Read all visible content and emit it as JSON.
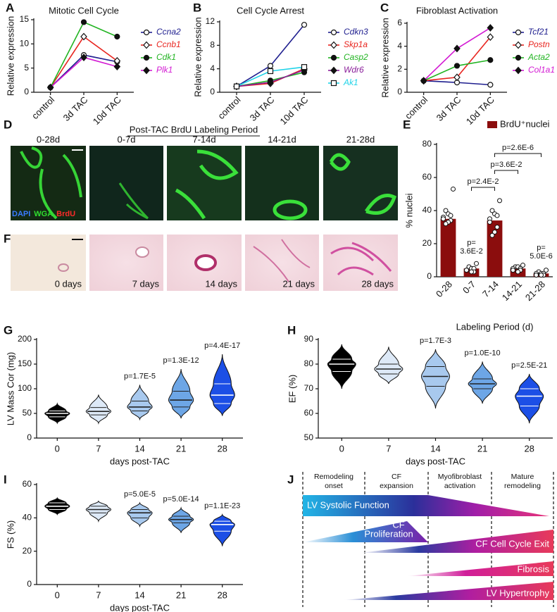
{
  "panel_labels": [
    "A",
    "B",
    "C",
    "D",
    "E",
    "F",
    "G",
    "H",
    "I",
    "J"
  ],
  "chart_data": [
    {
      "type": "line",
      "title": "Mitotic Cell Cycle",
      "y_label": "Relative expression",
      "categories": [
        "control",
        "3d TAC",
        "10d TAC"
      ],
      "ylim": [
        0,
        15
      ],
      "yticks": [
        0,
        5,
        10,
        15
      ],
      "series": [
        {
          "name": "Ccna2",
          "color": "#1f1f8f",
          "marker": "circle",
          "filled": false,
          "values": [
            1,
            7.7,
            6.3
          ]
        },
        {
          "name": "Ccnb1",
          "color": "#e8251f",
          "marker": "diamond",
          "filled": false,
          "values": [
            1,
            11.5,
            6.5
          ]
        },
        {
          "name": "Cdk1",
          "color": "#22b422",
          "marker": "circle",
          "filled": true,
          "values": [
            1,
            14.5,
            11.5
          ]
        },
        {
          "name": "Plk1",
          "color": "#d31bd3",
          "marker": "diamond",
          "filled": true,
          "values": [
            1,
            7.2,
            5.3
          ]
        }
      ]
    },
    {
      "type": "line",
      "title": "Cell Cycle Arrest",
      "y_label": "Relative expression",
      "categories": [
        "control",
        "3d TAC",
        "10d TAC"
      ],
      "ylim": [
        0,
        12
      ],
      "yticks": [
        0,
        4,
        8,
        12
      ],
      "series": [
        {
          "name": "Cdkn3",
          "color": "#1f1f8f",
          "marker": "circle",
          "filled": false,
          "values": [
            1,
            4.5,
            11.5
          ]
        },
        {
          "name": "Skp1a",
          "color": "#e8251f",
          "marker": "diamond",
          "filled": false,
          "values": [
            1,
            1.5,
            4.0
          ]
        },
        {
          "name": "Casp2",
          "color": "#22b422",
          "marker": "circle",
          "filled": true,
          "values": [
            1,
            2.0,
            3.4
          ]
        },
        {
          "name": "Wdr6",
          "color": "#8a1f9a",
          "marker": "diamond",
          "filled": true,
          "values": [
            1,
            1.7,
            3.8
          ]
        },
        {
          "name": "Ak1",
          "color": "#1fd3e8",
          "marker": "square",
          "filled": false,
          "values": [
            1,
            3.6,
            4.3
          ]
        }
      ]
    },
    {
      "type": "line",
      "title": "Fibroblast Activation",
      "y_label": "Relative expression",
      "categories": [
        "control",
        "3d TAC",
        "10d TAC"
      ],
      "ylim": [
        0,
        6
      ],
      "yticks": [
        0,
        2,
        4,
        6
      ],
      "series": [
        {
          "name": "Tcf21",
          "color": "#1f1f8f",
          "marker": "circle",
          "filled": false,
          "values": [
            1,
            0.85,
            0.65
          ]
        },
        {
          "name": "Postn",
          "color": "#e8251f",
          "marker": "diamond",
          "filled": false,
          "values": [
            1,
            1.3,
            4.8
          ]
        },
        {
          "name": "Acta2",
          "color": "#22b422",
          "marker": "circle",
          "filled": true,
          "values": [
            1,
            2.3,
            2.8
          ]
        },
        {
          "name": "Col1a1",
          "color": "#d31bd3",
          "marker": "diamond",
          "filled": true,
          "values": [
            1,
            3.8,
            5.6
          ]
        }
      ]
    },
    {
      "type": "bar",
      "y_label": "% nuclei",
      "x_label": "Labeling Period (d)",
      "categories": [
        "0-28",
        "0-7",
        "7-14",
        "14-21",
        "21-28"
      ],
      "ylim": [
        0,
        80
      ],
      "yticks": [
        0,
        20,
        40,
        60,
        80
      ],
      "series": [
        {
          "name": "BrdU⁺nuclei",
          "color": "#8b0d0d",
          "values": [
            35,
            5,
            34,
            5,
            2
          ]
        }
      ],
      "points": [
        [
          53,
          40,
          38,
          37,
          36,
          35,
          34,
          33,
          32
        ],
        [
          8,
          6,
          5,
          5,
          4,
          4,
          3,
          3
        ],
        [
          46,
          40,
          38,
          37,
          35,
          33,
          30,
          27,
          25
        ],
        [
          7,
          6,
          6,
          5,
          5,
          4,
          4,
          3
        ],
        [
          4,
          3,
          2,
          2,
          2,
          1,
          1,
          1
        ]
      ],
      "brackets": [
        {
          "from": 1,
          "to": 2,
          "label": "p=2.4E-2"
        },
        {
          "from": 2,
          "to": 3,
          "label": "p=3.6E-2"
        },
        {
          "from": 2,
          "to": 4,
          "label": "p=2.6E-6"
        }
      ],
      "bar_labels": [
        null,
        [
          "p=",
          "3.6E-2"
        ],
        null,
        null,
        [
          "p=",
          "5.0E-6"
        ]
      ]
    },
    {
      "type": "violin",
      "y_label": "LV Mass Cor (mg)",
      "x_label": "days post-TAC",
      "categories": [
        "0",
        "7",
        "14",
        "21",
        "28"
      ],
      "colors": [
        "#000000",
        "#dde9f7",
        "#a8c9ee",
        "#6da6e6",
        "#1c4fe6"
      ],
      "min": [
        30,
        30,
        38,
        40,
        45
      ],
      "q1": [
        43,
        47,
        55,
        63,
        70
      ],
      "median": [
        50,
        54,
        63,
        77,
        87
      ],
      "q3": [
        55,
        62,
        75,
        95,
        110
      ],
      "max": [
        70,
        88,
        108,
        140,
        170
      ],
      "ylim": [
        0,
        200
      ],
      "yticks": [
        0,
        50,
        100,
        150,
        200
      ],
      "annotations": [
        null,
        null,
        "p=1.7E-5",
        "p=1.3E-12",
        "p=4.4E-17"
      ]
    },
    {
      "type": "violin",
      "y_label": "EF (%)",
      "x_label": "days post-TAC",
      "categories": [
        "0",
        "7",
        "14",
        "21",
        "28"
      ],
      "colors": [
        "#000000",
        "#dde9f7",
        "#a8c9ee",
        "#6da6e6",
        "#1c4fe6"
      ],
      "min": [
        70,
        72,
        62,
        64,
        56
      ],
      "q1": [
        77,
        76,
        71,
        70,
        63
      ],
      "median": [
        80,
        78,
        75,
        72,
        67
      ],
      "q3": [
        82,
        80,
        79,
        74,
        70
      ],
      "max": [
        88,
        87,
        86,
        81,
        76
      ],
      "ylim": [
        50,
        90
      ],
      "yticks": [
        50,
        60,
        70,
        80,
        90
      ],
      "annotations": [
        null,
        null,
        "p=1.7E-3",
        "p=1.0E-10",
        "p=2.5E-21"
      ]
    },
    {
      "type": "violin",
      "y_label": "FS (%)",
      "x_label": "days post-TAC",
      "categories": [
        "0",
        "7",
        "14",
        "21",
        "28"
      ],
      "colors": [
        "#000000",
        "#dde9f7",
        "#a8c9ee",
        "#6da6e6",
        "#1c4fe6"
      ],
      "min": [
        42,
        38,
        35,
        31,
        23
      ],
      "q1": [
        45,
        43,
        40,
        37,
        32
      ],
      "median": [
        47,
        45,
        43,
        39,
        36
      ],
      "q3": [
        49,
        47,
        45,
        41,
        38
      ],
      "max": [
        52,
        50,
        49,
        46,
        42
      ],
      "ylim": [
        0,
        60
      ],
      "yticks": [
        0,
        20,
        40,
        60
      ],
      "annotations": [
        null,
        null,
        "p=5.0E-5",
        "p=5.0E-14",
        "p=1.1E-23"
      ]
    }
  ],
  "microscopy": {
    "title": "Post-TAC BrdU Labeling Period",
    "labels": [
      "0-28d",
      "0-7d",
      "7-14d",
      "14-21d",
      "21-28d"
    ],
    "stains": [
      {
        "name": "DAPI",
        "color": "#3a7bff"
      },
      {
        "name": "WGA",
        "color": "#2fe02f"
      },
      {
        "name": "BrdU",
        "color": "#ff2a2a"
      }
    ],
    "histology_labels": [
      "0 days",
      "7 days",
      "14 days",
      "21 days",
      "28 days"
    ]
  },
  "schematic": {
    "phases": [
      [
        "Remodeling",
        "onset"
      ],
      [
        "CF",
        "expansion"
      ],
      [
        "Myofibroblast",
        "activation"
      ],
      [
        "Mature",
        "remodeling"
      ]
    ],
    "processes": [
      [
        "LV Systolic Function"
      ],
      [
        "CF",
        "Proliferation"
      ],
      [
        "CF Cell Cycle Exit"
      ],
      [
        "Fibrosis"
      ],
      [
        "LV Hypertrophy"
      ]
    ]
  }
}
